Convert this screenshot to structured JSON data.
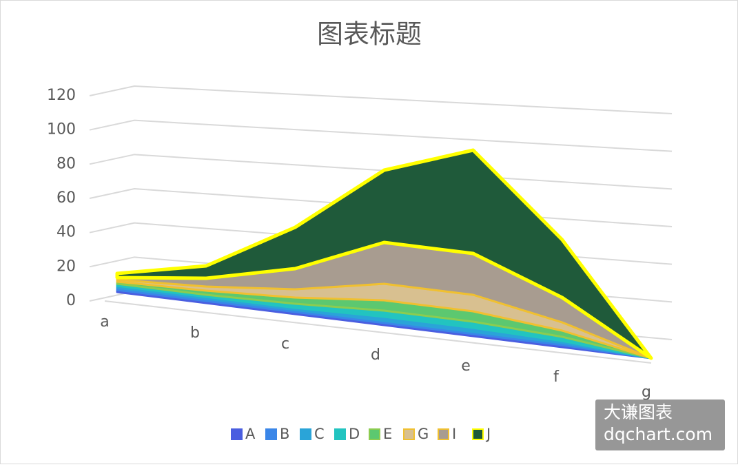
{
  "chart_data": {
    "type": "area3d",
    "stacked": true,
    "title": "图表标题",
    "categories": [
      "a",
      "b",
      "c",
      "d",
      "e",
      "f",
      "g"
    ],
    "series": [
      {
        "name": "A",
        "color": "#4a5ee0",
        "values": [
          1,
          1,
          1,
          1,
          1,
          1,
          0
        ]
      },
      {
        "name": "B",
        "color": "#3a86e8",
        "values": [
          1,
          1,
          1,
          1,
          1,
          1,
          0
        ]
      },
      {
        "name": "C",
        "color": "#2aa4d8",
        "values": [
          1,
          1,
          1,
          2,
          2,
          1,
          0
        ]
      },
      {
        "name": "D",
        "color": "#22c4c0",
        "values": [
          1,
          1,
          2,
          3,
          3,
          2,
          0
        ]
      },
      {
        "name": "E",
        "color": "#5cc870",
        "values": [
          1,
          2,
          3,
          5,
          5,
          3,
          0
        ]
      },
      {
        "name": "G",
        "color": "#d8c090",
        "values": [
          1,
          2,
          4,
          8,
          8,
          4,
          0
        ]
      },
      {
        "name": "I",
        "color": "#a89c90",
        "values": [
          1,
          4,
          10,
          20,
          20,
          12,
          0
        ]
      },
      {
        "name": "J",
        "color": "#1f5a3a",
        "values": [
          2,
          6,
          20,
          35,
          50,
          28,
          0
        ]
      }
    ],
    "ylim": [
      0,
      120
    ],
    "yticks": [
      0,
      20,
      40,
      60,
      80,
      100,
      120
    ],
    "grid": true,
    "legend": "bottom",
    "watermark": [
      "大谦图表",
      "dqchart.com"
    ]
  }
}
